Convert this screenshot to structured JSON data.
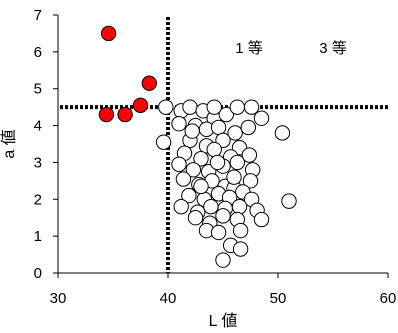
{
  "chart_data": {
    "type": "scatter",
    "title": "",
    "xlabel": "L 値",
    "ylabel": "a 値",
    "xlim": [
      30,
      60
    ],
    "ylim": [
      0,
      7
    ],
    "xticks": [
      30,
      40,
      50,
      60
    ],
    "yticks": [
      0,
      1,
      2,
      3,
      4,
      5,
      6,
      7
    ],
    "grid": false,
    "threshold_lines": {
      "x": 40,
      "y": 4.5,
      "style": "dotted"
    },
    "annotations": [
      "1 等",
      "3 等"
    ],
    "series": [
      {
        "color": "#ff0000",
        "edge": "#000000",
        "points": [
          [
            34.6,
            6.5
          ],
          [
            38.3,
            5.15
          ],
          [
            37.5,
            4.55
          ],
          [
            36.1,
            4.3
          ],
          [
            34.4,
            4.3
          ]
        ]
      },
      {
        "color": "#ffffff",
        "edge": "#000000",
        "points": [
          [
            39.8,
            4.5
          ],
          [
            39.6,
            3.55
          ],
          [
            41.2,
            4.4
          ],
          [
            42.0,
            4.5
          ],
          [
            43.2,
            4.4
          ],
          [
            44.2,
            4.2
          ],
          [
            45.3,
            4.3
          ],
          [
            46.3,
            4.5
          ],
          [
            47.6,
            4.5
          ],
          [
            48.5,
            4.2
          ],
          [
            50.4,
            3.8
          ],
          [
            41.0,
            4.05
          ],
          [
            42.5,
            4.0
          ],
          [
            43.5,
            3.9
          ],
          [
            44.6,
            3.95
          ],
          [
            46.1,
            3.8
          ],
          [
            47.3,
            3.95
          ],
          [
            42.0,
            3.6
          ],
          [
            43.5,
            3.45
          ],
          [
            45.0,
            3.6
          ],
          [
            46.5,
            3.4
          ],
          [
            41.5,
            3.25
          ],
          [
            43.0,
            3.1
          ],
          [
            44.2,
            3.35
          ],
          [
            45.7,
            3.15
          ],
          [
            47.4,
            3.2
          ],
          [
            41.0,
            2.95
          ],
          [
            42.3,
            2.8
          ],
          [
            43.7,
            2.75
          ],
          [
            45.0,
            2.9
          ],
          [
            46.3,
            3.0
          ],
          [
            47.7,
            2.8
          ],
          [
            41.4,
            2.55
          ],
          [
            42.8,
            2.4
          ],
          [
            44.0,
            2.5
          ],
          [
            45.2,
            2.35
          ],
          [
            46.0,
            2.3
          ],
          [
            47.5,
            2.5
          ],
          [
            41.9,
            2.1
          ],
          [
            43.3,
            2.0
          ],
          [
            44.6,
            2.15
          ],
          [
            45.6,
            2.05
          ],
          [
            46.8,
            2.2
          ],
          [
            47.6,
            2.0
          ],
          [
            41.2,
            1.8
          ],
          [
            42.7,
            1.65
          ],
          [
            43.9,
            1.8
          ],
          [
            45.2,
            1.75
          ],
          [
            46.5,
            1.8
          ],
          [
            48.1,
            1.7
          ],
          [
            42.5,
            1.5
          ],
          [
            43.8,
            1.35
          ],
          [
            45.0,
            1.55
          ],
          [
            46.3,
            1.45
          ],
          [
            48.5,
            1.45
          ],
          [
            43.5,
            1.15
          ],
          [
            44.6,
            1.1
          ],
          [
            46.6,
            1.15
          ],
          [
            45.7,
            0.75
          ],
          [
            46.6,
            0.65
          ],
          [
            45.0,
            0.35
          ],
          [
            51.0,
            1.95
          ],
          [
            44.2,
            4.5
          ],
          [
            43.0,
            2.35
          ],
          [
            44.5,
            3.0
          ],
          [
            46.0,
            2.6
          ],
          [
            42.2,
            3.85
          ]
        ]
      }
    ]
  }
}
